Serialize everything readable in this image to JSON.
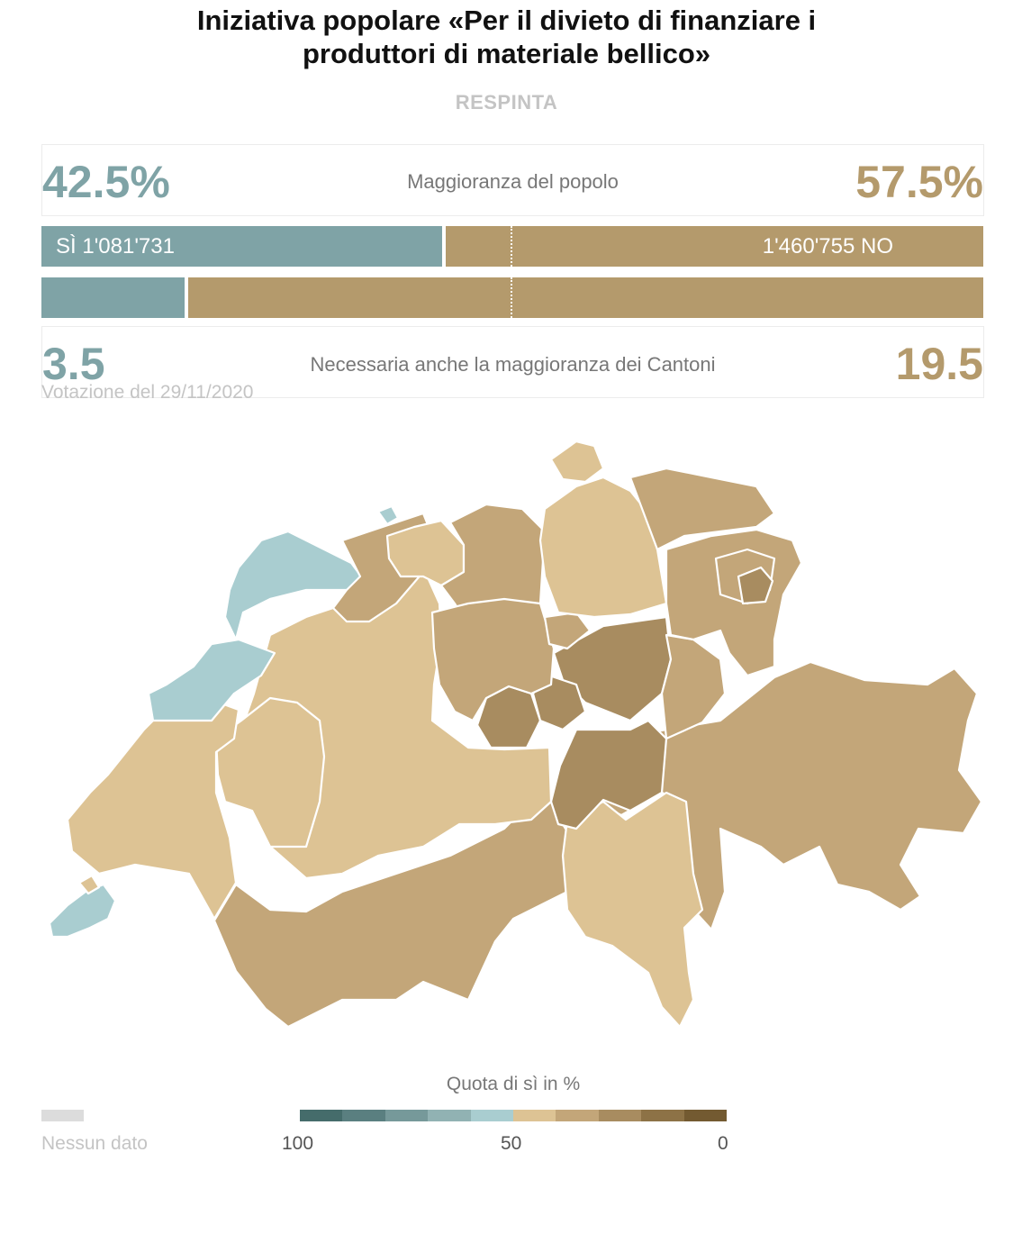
{
  "header": {
    "title_line1": "Iniziativa popolare «Per il divieto di finanziare i",
    "title_line2": "produttori di materiale bellico»",
    "status": "RESPINTA"
  },
  "popular": {
    "yes_pct": "42.5%",
    "no_pct": "57.5%",
    "label": "Maggioranza del popolo",
    "yes_votes_label": "SÌ 1'081'731",
    "no_votes_label": "1'460'755 NO",
    "yes_share": 0.425
  },
  "cantons": {
    "yes_count": "3.5",
    "no_count": "19.5",
    "label": "Necessaria anche la maggioranza dei Cantoni",
    "yes_share": 0.152
  },
  "date_label": "Votazione del 29/11/2020",
  "legend": {
    "title": "Quota di sì in %",
    "no_data_label": "Nessun dato",
    "ticks": [
      "100",
      "50",
      "0"
    ],
    "colors": [
      "#456c6b",
      "#5a7f80",
      "#76999a",
      "#91b2b3",
      "#a9cdd0",
      "#ddc394",
      "#c3a679",
      "#a88c60",
      "#8d7246",
      "#735a31"
    ]
  },
  "colors": {
    "yes": "#7fa3a6",
    "no": "#b49a6c",
    "map_yes": "#a9cdd0",
    "map_light": "#ddc394",
    "map_mid": "#c3a679",
    "map_dark": "#a88c60"
  }
}
